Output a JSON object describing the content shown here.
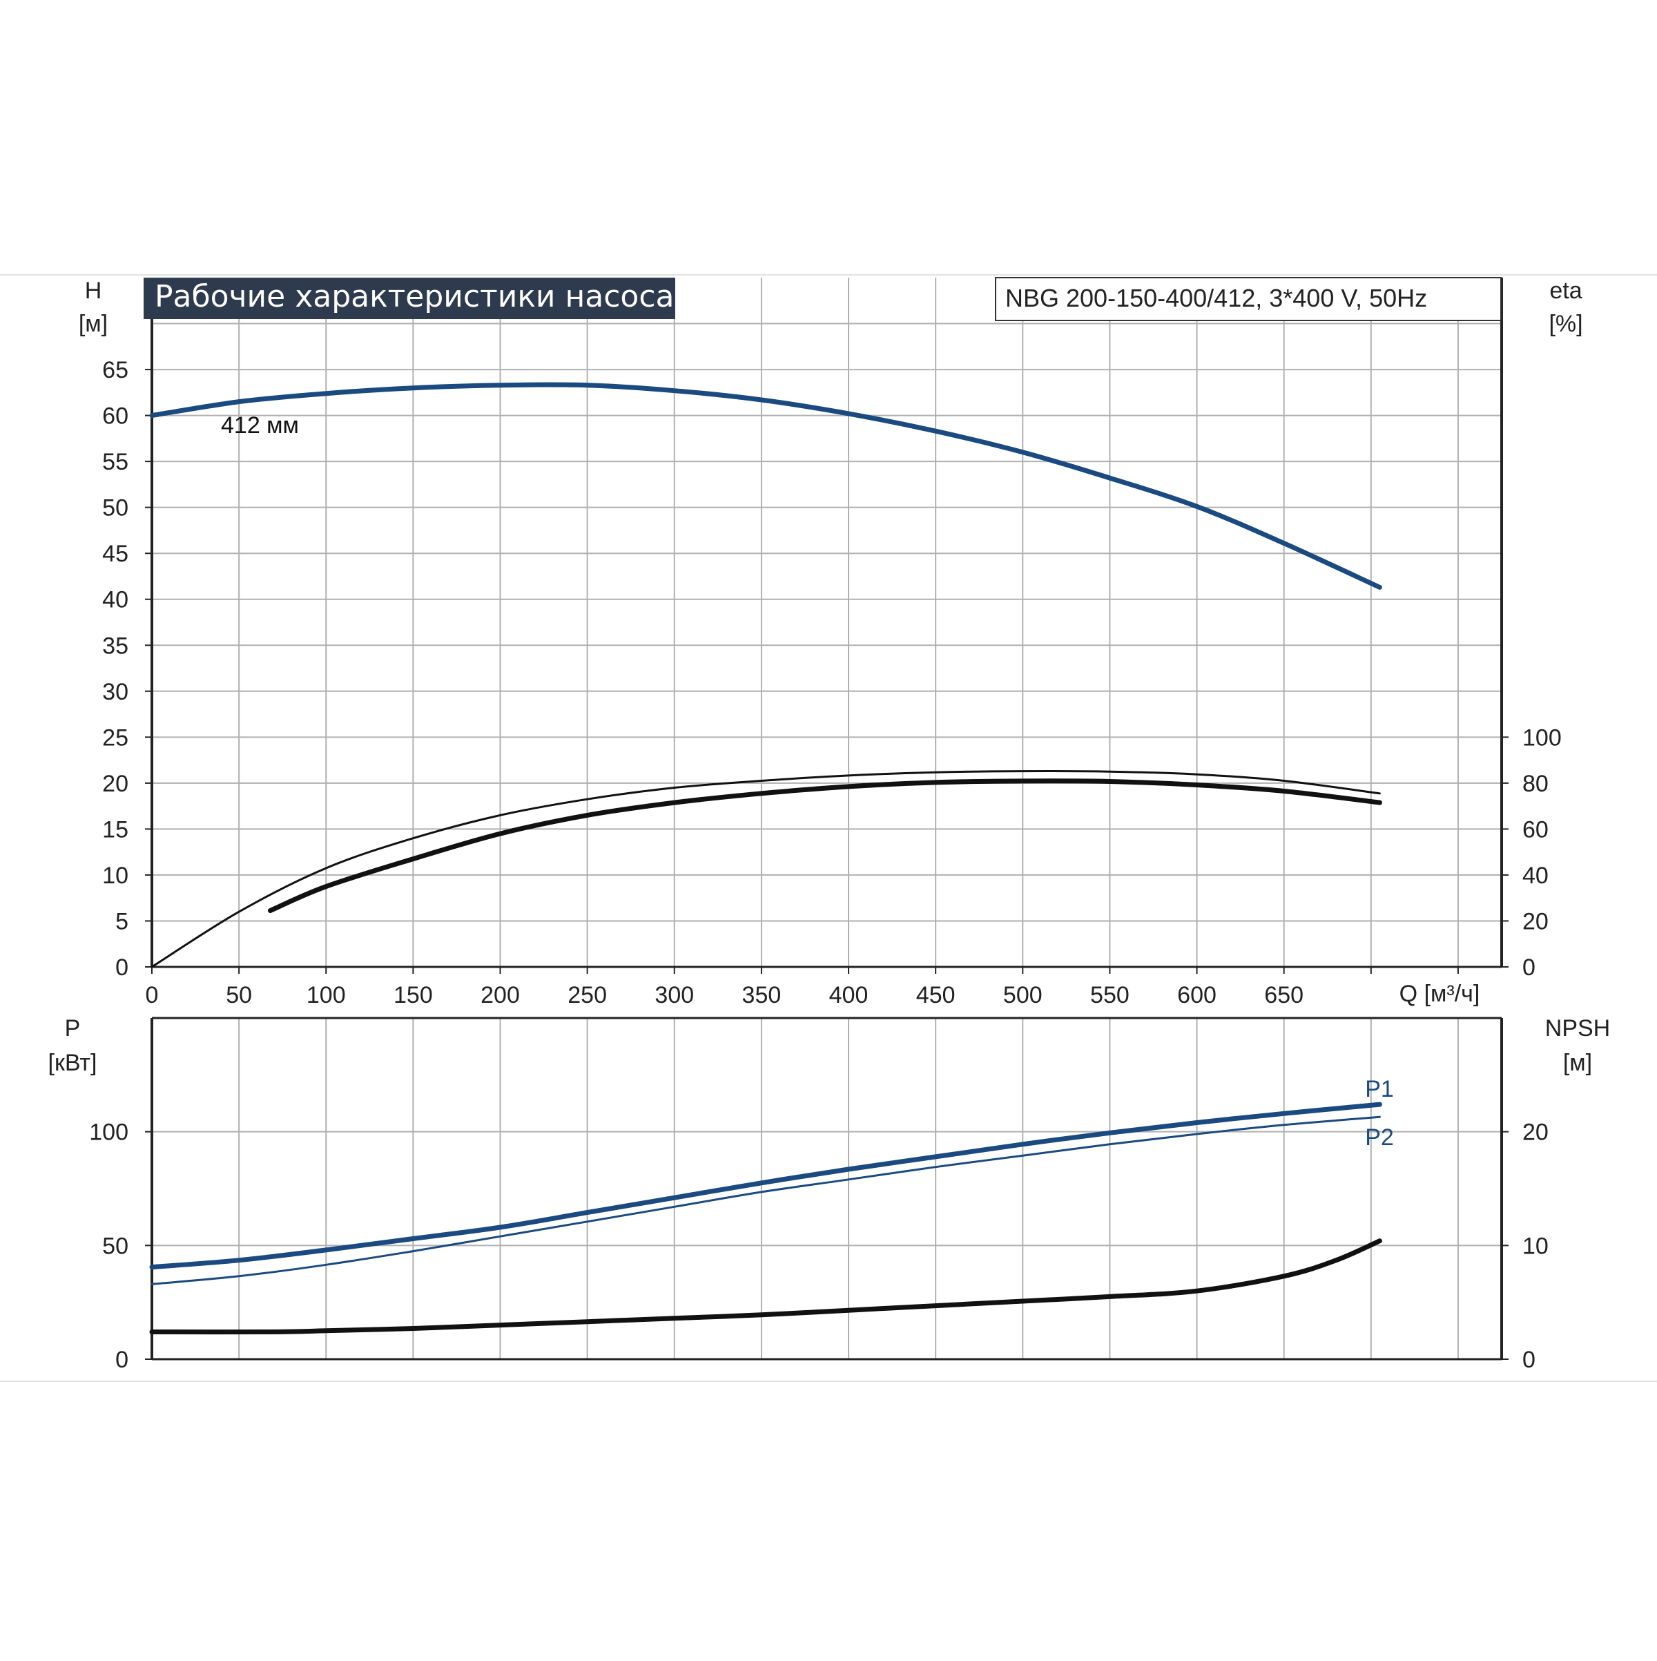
{
  "header": {
    "title": "Рабочие характеристики насоса",
    "model": "NBG 200-150-400/412, 3*400 V, 50Hz"
  },
  "colors": {
    "blue": "#1a4a80",
    "black": "#111111",
    "grid": "#b0b0b0",
    "title_bg": "#2e3a4e",
    "title_fg": "#ffffff"
  },
  "chart_data": [
    {
      "type": "line",
      "name": "head-efficiency",
      "x_axis": {
        "label": "Q [м³/ч]",
        "ticks": [
          0,
          50,
          100,
          150,
          200,
          250,
          300,
          350,
          400,
          450,
          500,
          550,
          600,
          650
        ],
        "range": [
          0,
          775
        ]
      },
      "y_axis_left": {
        "label_top": "H",
        "label_unit": "[м]",
        "ticks": [
          0,
          5,
          10,
          15,
          20,
          25,
          30,
          35,
          40,
          45,
          50,
          55,
          60,
          65
        ],
        "range": [
          0,
          75
        ]
      },
      "y_axis_right": {
        "label_top": "eta",
        "label_unit": "[%]",
        "ticks": [
          0,
          20,
          40,
          60,
          80,
          100
        ],
        "range": [
          0,
          100
        ]
      },
      "grid": true,
      "annotations": [
        {
          "text": "412 мм",
          "x": 70,
          "y": 62
        }
      ],
      "series": [
        {
          "name": "H",
          "axis": "left",
          "color": "#1a4a80",
          "weight": "thick",
          "x": [
            0,
            50,
            100,
            150,
            200,
            250,
            300,
            350,
            400,
            450,
            500,
            550,
            600,
            650,
            705
          ],
          "y": [
            60,
            61.5,
            62.4,
            63,
            63.3,
            63.3,
            62.7,
            61.7,
            60.2,
            58.3,
            56,
            53.2,
            50.1,
            46.1,
            41.3
          ]
        },
        {
          "name": "eta",
          "axis": "right",
          "color": "#111111",
          "weight": "thin",
          "x": [
            0,
            50,
            100,
            150,
            200,
            250,
            300,
            350,
            400,
            450,
            500,
            550,
            600,
            650,
            705
          ],
          "y": [
            0,
            24,
            43,
            56,
            66,
            73,
            78,
            81,
            83.3,
            84.7,
            85.2,
            85,
            83.8,
            81,
            75.5
          ]
        },
        {
          "name": "eta-2",
          "axis": "right",
          "color": "#111111",
          "weight": "thick",
          "x": [
            68,
            100,
            150,
            200,
            250,
            300,
            350,
            400,
            450,
            500,
            550,
            600,
            650,
            705
          ],
          "y": [
            24.5,
            35,
            47,
            58,
            66,
            71.5,
            75.5,
            78.5,
            80.3,
            80.9,
            80.7,
            79.2,
            76.5,
            71.5
          ]
        }
      ]
    },
    {
      "type": "line",
      "name": "power-npsh",
      "x_axis": {
        "ticks": [
          0,
          50,
          100,
          150,
          200,
          250,
          300,
          350,
          400,
          450,
          500,
          550,
          600,
          650
        ],
        "range": [
          0,
          775
        ]
      },
      "y_axis_left": {
        "label_top": "P",
        "label_unit": "[кВт]",
        "ticks": [
          0,
          50,
          100
        ],
        "range": [
          0,
          150
        ]
      },
      "y_axis_right": {
        "label_top": "NPSH",
        "label_unit": "[м]",
        "ticks": [
          0,
          10,
          20
        ],
        "range": [
          0,
          30
        ]
      },
      "grid": true,
      "series": [
        {
          "name": "P1",
          "axis": "left",
          "color": "#1a4a80",
          "weight": "thick",
          "x": [
            0,
            50,
            100,
            150,
            200,
            250,
            300,
            350,
            400,
            450,
            500,
            550,
            600,
            650,
            705
          ],
          "y": [
            40.5,
            43.5,
            48,
            53,
            58,
            64.5,
            71,
            77.5,
            83.5,
            89,
            94.5,
            99.5,
            104,
            108,
            112
          ]
        },
        {
          "name": "P2",
          "axis": "left",
          "color": "#1a4a80",
          "weight": "thin",
          "x": [
            0,
            50,
            100,
            150,
            200,
            250,
            300,
            350,
            400,
            450,
            500,
            550,
            600,
            650,
            705
          ],
          "y": [
            33,
            36.5,
            41.5,
            47.5,
            54,
            60.5,
            67,
            73.5,
            79,
            84.5,
            89.5,
            94.5,
            99,
            103,
            106.5
          ]
        },
        {
          "name": "NPSH",
          "axis": "right",
          "color": "#111111",
          "weight": "thick",
          "x": [
            0,
            68,
            100,
            150,
            200,
            250,
            300,
            350,
            400,
            450,
            500,
            550,
            600,
            650,
            680,
            705
          ],
          "y": [
            2.4,
            2.4,
            2.5,
            2.7,
            3,
            3.3,
            3.6,
            3.9,
            4.3,
            4.7,
            5.1,
            5.5,
            6,
            7.3,
            8.7,
            10.4
          ]
        }
      ]
    }
  ]
}
